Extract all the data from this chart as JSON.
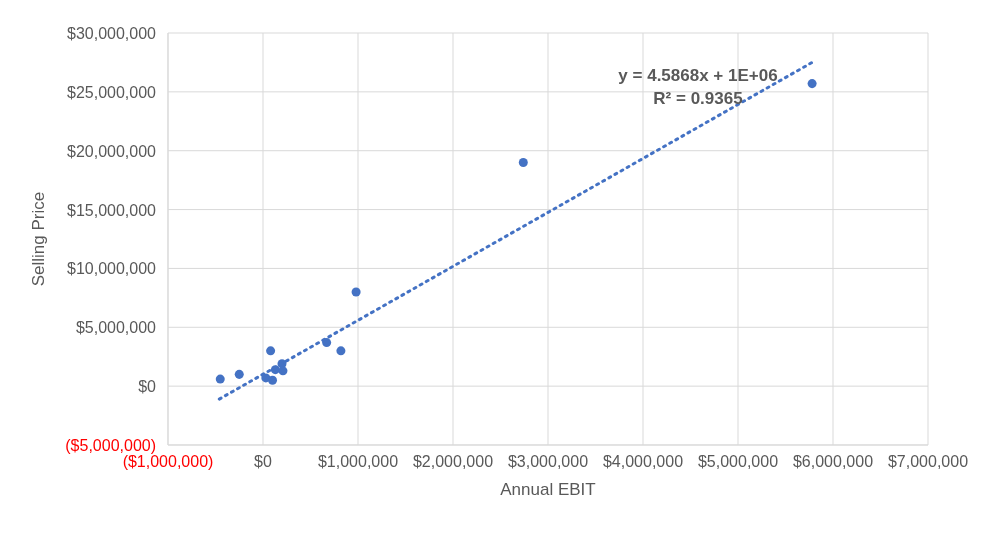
{
  "chart_data": {
    "type": "scatter",
    "xlabel": "Annual EBIT",
    "ylabel": "Selling Price",
    "annotations": [
      "y = 4.5868x + 1E+06",
      "R² = 0.9365"
    ],
    "series": [
      {
        "color": "#4472c4",
        "marker": "circle",
        "x": [
          -450000,
          -250000,
          20000,
          30000,
          80000,
          100000,
          130000,
          200000,
          210000,
          670000,
          820000,
          980000,
          2740000,
          5780000
        ],
        "values": [
          600000,
          1000000,
          null,
          700000,
          3000000,
          500000,
          1400000,
          1900000,
          1300000,
          3700000,
          3000000,
          8000000,
          19000000,
          25700000
        ]
      },
      {
        "type": "line",
        "color": "#4472c4",
        "line_style": "dotted",
        "x": [
          -460000,
          5780000
        ],
        "values": [
          -1100000,
          27500000
        ]
      }
    ],
    "xlim": [
      -1000000,
      7000000
    ],
    "xticks": [
      {
        "value": -1000000,
        "label": "($1,000,000)"
      },
      {
        "value": 0,
        "label": "$0"
      },
      {
        "value": 1000000,
        "label": "$1,000,000"
      },
      {
        "value": 2000000,
        "label": "$2,000,000"
      },
      {
        "value": 3000000,
        "label": "$3,000,000"
      },
      {
        "value": 4000000,
        "label": "$4,000,000"
      },
      {
        "value": 5000000,
        "label": "$5,000,000"
      },
      {
        "value": 6000000,
        "label": "$6,000,000"
      },
      {
        "value": 7000000,
        "label": "$7,000,000"
      }
    ],
    "ylim": [
      -5000000,
      30000000
    ],
    "yticks": [
      {
        "value": -5000000,
        "label": "($5,000,000)"
      },
      {
        "value": 0,
        "label": "$0"
      },
      {
        "value": 5000000,
        "label": "$5,000,000"
      },
      {
        "value": 10000000,
        "label": "$10,000,000"
      },
      {
        "value": 15000000,
        "label": "$15,000,000"
      },
      {
        "value": 20000000,
        "label": "$20,000,000"
      },
      {
        "value": 25000000,
        "label": "$25,000,000"
      },
      {
        "value": 30000000,
        "label": "$30,000,000"
      }
    ],
    "grid": true
  }
}
